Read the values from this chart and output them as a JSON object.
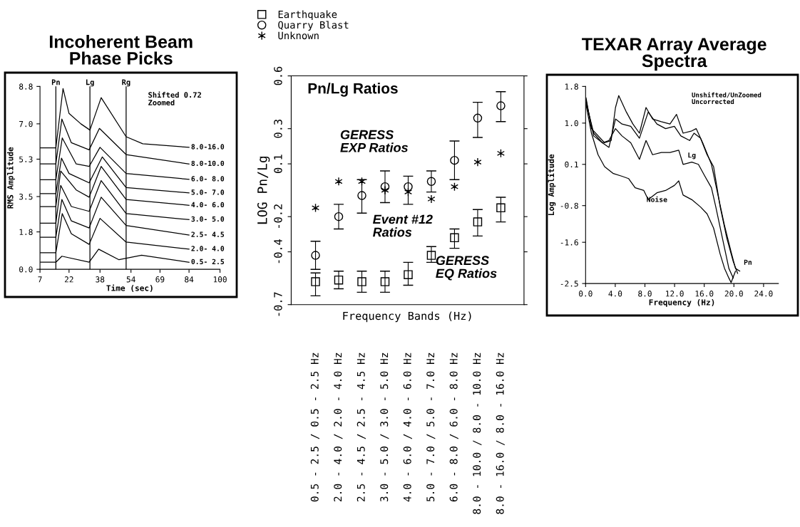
{
  "chart_data": [
    {
      "type": "line",
      "title": "Incoherent Beam\nPhase Picks",
      "xlabel": "Time (sec)",
      "ylabel": "RMS Amplitude",
      "annotations": [
        "Shifted 0.72\nZoomed"
      ],
      "legend": false,
      "xlim": [
        7,
        100
      ],
      "ylim": [
        0,
        8.8
      ],
      "xticks": [
        7,
        22,
        38,
        54,
        69,
        84,
        100
      ],
      "yticks": [
        {
          "value": 0,
          "label": "0.0"
        },
        1.8,
        3.5,
        5.3,
        {
          "value": 7,
          "label": "7.0"
        },
        8.8
      ],
      "ref_lines": [
        {
          "axis": "x",
          "value": 15.2,
          "label": "Pn"
        },
        {
          "axis": "x",
          "value": 32.8,
          "label": "Lg"
        },
        {
          "axis": "x",
          "value": 51.5,
          "label": "Rg"
        }
      ],
      "series": [
        {
          "name": "8.0-16.0",
          "color": "#000000",
          "x": [
            7,
            15.2,
            18.9,
            22.0,
            28.1,
            32.8,
            38.6,
            51.5,
            60.1,
            84.0
          ],
          "values": [
            5.84,
            5.84,
            8.7,
            7.5,
            7.0,
            6.7,
            8.26,
            6.38,
            6.04,
            5.87
          ]
        },
        {
          "name": "8.0-10.0",
          "color": "#000000",
          "x": [
            7,
            15.2,
            18.3,
            23.2,
            32.4,
            37.7,
            51.5,
            84.0
          ],
          "values": [
            5.07,
            5.07,
            7.23,
            6.09,
            5.75,
            6.78,
            5.52,
            5.07
          ]
        },
        {
          "name": "6.0- 8.0",
          "color": "#000000",
          "x": [
            7,
            15.2,
            18.5,
            25.7,
            32.4,
            38.0,
            51.5,
            84.0
          ],
          "values": [
            4.31,
            4.31,
            6.32,
            5.07,
            4.95,
            5.87,
            4.61,
            4.33
          ]
        },
        {
          "name": "5.0- 7.0",
          "color": "#000000",
          "x": [
            7,
            15.2,
            18.1,
            22.0,
            32.4,
            39.2,
            51.5,
            84.0
          ],
          "values": [
            3.64,
            3.64,
            5.35,
            4.61,
            4.16,
            5.41,
            3.93,
            3.68
          ]
        },
        {
          "name": "4.0- 6.0",
          "color": "#000000",
          "x": [
            7,
            15.2,
            17.7,
            25.7,
            32.4,
            38.6,
            51.5,
            84.0
          ],
          "values": [
            3.02,
            3.02,
            4.73,
            3.82,
            3.47,
            4.95,
            3.36,
            3.08
          ]
        },
        {
          "name": "3.0- 5.0",
          "color": "#000000",
          "x": [
            7,
            15.2,
            17.7,
            23.2,
            32.4,
            38.6,
            51.5,
            84.0
          ],
          "values": [
            2.22,
            2.22,
            4.04,
            3.02,
            2.79,
            4.27,
            2.68,
            2.39
          ]
        },
        {
          "name": "2.5- 4.5",
          "color": "#000000",
          "x": [
            7,
            15.2,
            18.3,
            23.2,
            32.4,
            38.6,
            51.5,
            84.0
          ],
          "values": [
            1.54,
            1.54,
            3.36,
            2.33,
            1.99,
            3.47,
            2.11,
            1.65
          ]
        },
        {
          "name": "2.0- 4.0",
          "color": "#000000",
          "x": [
            7,
            15.2,
            18.5,
            23.2,
            32.4,
            38.0,
            51.5,
            84.0
          ],
          "values": [
            0.8,
            0.8,
            2.68,
            1.71,
            1.2,
            2.45,
            1.31,
            0.97
          ]
        },
        {
          "name": "0.5- 2.5",
          "color": "#000000",
          "x": [
            7,
            15.2,
            18.3,
            32.4,
            37.3,
            47.8,
            59.5,
            84.0
          ],
          "values": [
            0.34,
            0.34,
            0.63,
            0.34,
            0.97,
            0.46,
            0.68,
            0.34
          ]
        }
      ]
    },
    {
      "type": "scatter",
      "title": "Pn/Lg Ratios",
      "xlabel": "Frequency Bands (Hz)",
      "ylabel": "LOG Pn/Lg",
      "legend": "top",
      "annotations": [
        "GERESS\nEXP Ratios",
        "Event #12\nRatios",
        "GERESS\nEQ Ratios"
      ],
      "categories": [
        "0.5 - 2.5 / 0.5 - 2.5 Hz",
        "2.0 - 4.0 / 2.0 - 4.0 Hz",
        "2.5 - 4.5 / 2.5 - 4.5 Hz",
        "3.0 - 5.0 / 3.0 - 5.0 Hz",
        "4.0 - 6.0 / 4.0 - 6.0 Hz",
        "5.0 - 7.0 / 5.0 - 7.0 Hz",
        "6.0 - 8.0 / 6.0 - 8.0 Hz",
        "8.0 - 10.0 / 8.0 - 10.0 Hz",
        "8.0 - 16.0 / 8.0 - 16.0 Hz"
      ],
      "ylim": [
        -0.7,
        0.6
      ],
      "yticks": [
        -0.7,
        -0.4,
        -0.2,
        0.1,
        0.3,
        0.6
      ],
      "series": [
        {
          "name": "Earthquake",
          "color": "#000000",
          "marker": "square",
          "values": [
            -0.57,
            -0.56,
            -0.57,
            -0.57,
            -0.53,
            -0.42,
            -0.32,
            -0.23,
            -0.15
          ],
          "errors": [
            [
              -0.65,
              -0.52
            ],
            [
              -0.61,
              -0.51
            ],
            [
              -0.63,
              -0.51
            ],
            [
              -0.63,
              -0.51
            ],
            [
              -0.59,
              -0.46
            ],
            [
              -0.46,
              -0.37
            ],
            [
              -0.38,
              -0.27
            ],
            [
              -0.31,
              -0.16
            ],
            [
              -0.23,
              -0.09
            ]
          ]
        },
        {
          "name": "Quarry Blast",
          "color": "#000000",
          "marker": "circle",
          "values": [
            -0.42,
            -0.2,
            -0.08,
            -0.03,
            -0.03,
            0.0,
            0.12,
            0.36,
            0.43
          ],
          "errors": [
            [
              -0.5,
              -0.34
            ],
            [
              -0.27,
              -0.13
            ],
            [
              -0.18,
              0.01
            ],
            [
              -0.12,
              0.06
            ],
            [
              -0.13,
              0.03
            ],
            [
              -0.06,
              0.06
            ],
            [
              0.01,
              0.23
            ],
            [
              0.25,
              0.45
            ],
            [
              0.34,
              0.51
            ]
          ]
        },
        {
          "name": "Unknown",
          "color": "#000000",
          "marker": "cross",
          "values": [
            -0.15,
            0.0,
            0.0,
            -0.05,
            -0.06,
            -0.1,
            -0.03,
            0.11,
            0.16
          ]
        }
      ]
    },
    {
      "type": "line",
      "title": "TEXAR Array Average\nSpectra",
      "xlabel": "Frequency (Hz)",
      "ylabel": "Log Amplitude",
      "annotations": [
        "Unshifted/UnZoomed\nUncorrected"
      ],
      "legend": false,
      "xlim": [
        0,
        26
      ],
      "ylim": [
        -2.5,
        1.8
      ],
      "xticks": [
        {
          "value": 0,
          "label": "0.0"
        },
        {
          "value": 4,
          "label": "4.0"
        },
        {
          "value": 8,
          "label": "8.0"
        },
        {
          "value": 12,
          "label": "12.0"
        },
        {
          "value": 16,
          "label": "16.0"
        },
        {
          "value": 20,
          "label": "20.0"
        },
        {
          "value": 24,
          "label": "24.0"
        }
      ],
      "yticks": [
        -2.5,
        -1.6,
        -0.8,
        0.1,
        {
          "value": 1,
          "label": "1.0"
        },
        1.8
      ],
      "series": [
        {
          "name": "Pn",
          "color": "#000000",
          "x": [
            0.06,
            0.79,
            2.56,
            3.44,
            4.03,
            4.47,
            5.5,
            6.38,
            7.26,
            8.15,
            9.03,
            10.21,
            11.38,
            12.26,
            13.15,
            14.32,
            14.91,
            15.79,
            16.97,
            17.85,
            18.74,
            19.62,
            20.21,
            20.79
          ],
          "values": [
            1.55,
            0.88,
            0.57,
            0.62,
            1.34,
            1.6,
            1.24,
            0.98,
            0.78,
            1.34,
            1.09,
            1.03,
            0.98,
            1.19,
            0.78,
            0.83,
            0.88,
            0.57,
            0.1,
            -0.57,
            -1.24,
            -1.81,
            -2.17,
            -2.23
          ]
        },
        {
          "color": "#000000",
          "x": [
            0.06,
            1.09,
            2.26,
            3.15,
            4.03,
            4.91,
            6.09,
            7.26,
            8.44,
            9.62,
            10.79,
            11.97,
            12.85,
            14.03,
            14.62,
            15.5,
            16.38,
            17.26,
            18.15,
            19.03,
            19.91,
            20.5
          ],
          "values": [
            1.5,
            0.72,
            0.57,
            0.47,
            1.09,
            0.98,
            0.93,
            0.67,
            1.24,
            0.98,
            0.88,
            0.93,
            0.72,
            0.62,
            0.78,
            0.67,
            0.31,
            0.05,
            -0.83,
            -1.5,
            -2.02,
            -2.28
          ]
        },
        {
          "name": "Lg",
          "color": "#000000",
          "x": [
            0.06,
            1.09,
            2.26,
            3.15,
            4.03,
            4.91,
            6.09,
            7.26,
            8.15,
            9.03,
            10.21,
            11.38,
            12.56,
            13.15,
            14.32,
            15.21,
            16.09,
            16.97,
            17.56,
            18.44,
            19.32,
            19.91
          ],
          "values": [
            1.45,
            0.78,
            0.57,
            0.62,
            0.88,
            0.72,
            0.57,
            0.21,
            0.62,
            0.31,
            0.36,
            0.36,
            0.41,
            0.1,
            0.15,
            0.1,
            -0.16,
            -0.41,
            -0.83,
            -1.5,
            -2.17,
            -2.38
          ]
        },
        {
          "name": "Noise",
          "color": "#000000",
          "x": [
            0.06,
            0.79,
            1.68,
            2.56,
            3.74,
            4.91,
            5.79,
            6.68,
            7.85,
            8.44,
            9.62,
            10.79,
            11.97,
            12.56,
            13.15,
            14.32,
            15.5,
            16.38,
            17.26,
            18.15,
            18.74,
            19.32,
            19.62,
            20.21
          ],
          "values": [
            1.4,
            0.78,
            0.31,
            0.05,
            -0.1,
            -0.16,
            -0.21,
            -0.41,
            -0.47,
            -0.67,
            -0.52,
            -0.47,
            -0.36,
            -0.26,
            -0.57,
            -0.67,
            -0.83,
            -0.98,
            -1.29,
            -1.86,
            -2.17,
            -2.38,
            -2.48,
            -2.23
          ]
        }
      ]
    }
  ]
}
